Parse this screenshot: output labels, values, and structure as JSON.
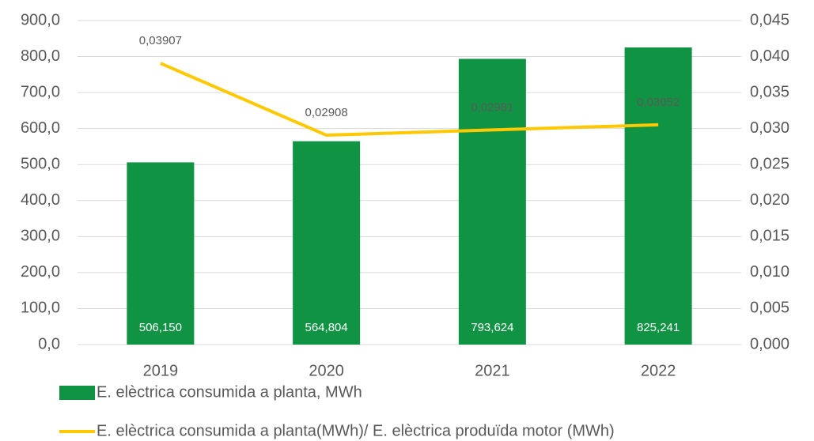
{
  "chart_data": {
    "type": "combo",
    "categories": [
      "2019",
      "2020",
      "2021",
      "2022"
    ],
    "series": [
      {
        "name": "E. elèctrica consumida a planta, MWh",
        "type": "bar",
        "color": "#109444",
        "values": [
          506.15,
          564.804,
          793.624,
          825.241
        ],
        "value_labels": [
          "506,150",
          "564,804",
          "793,624",
          "825,241"
        ]
      },
      {
        "name": "E. elèctrica consumida a planta(MWh)/ E. elèctrica produïda motor (MWh)",
        "type": "line",
        "axis": "y2",
        "color": "#ffc800",
        "values": [
          0.03907,
          0.02908,
          0.02981,
          0.03052
        ],
        "value_labels": [
          "0,03907",
          "0,02908",
          "0,02981",
          "0,03052"
        ]
      }
    ],
    "ylim": [
      0,
      900
    ],
    "yticks": [
      {
        "value": 0,
        "label": "0,0"
      },
      {
        "value": 100,
        "label": "100,0"
      },
      {
        "value": 200,
        "label": "200,0"
      },
      {
        "value": 300,
        "label": "300,0"
      },
      {
        "value": 400,
        "label": "400,0"
      },
      {
        "value": 500,
        "label": "500,0"
      },
      {
        "value": 600,
        "label": "600,0"
      },
      {
        "value": 700,
        "label": "700,0"
      },
      {
        "value": 800,
        "label": "800,0"
      },
      {
        "value": 900,
        "label": "900,0"
      }
    ],
    "y2lim": [
      0,
      0.045
    ],
    "y2ticks": [
      {
        "value": 0,
        "label": "0,000"
      },
      {
        "value": 0.005,
        "label": "0,005"
      },
      {
        "value": 0.01,
        "label": "0,010"
      },
      {
        "value": 0.015,
        "label": "0,015"
      },
      {
        "value": 0.02,
        "label": "0,020"
      },
      {
        "value": 0.025,
        "label": "0,025"
      },
      {
        "value": 0.03,
        "label": "0,030"
      },
      {
        "value": 0.035,
        "label": "0,035"
      },
      {
        "value": 0.04,
        "label": "0,040"
      },
      {
        "value": 0.045,
        "label": "0,045"
      }
    ],
    "grid": true,
    "legend": "bottom"
  }
}
